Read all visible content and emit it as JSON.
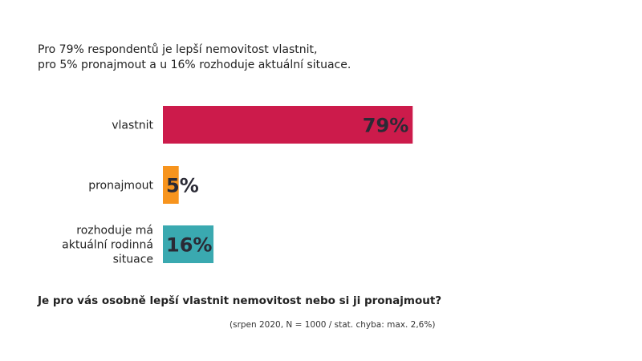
{
  "chart_data": {
    "type": "bar",
    "orientation": "horizontal",
    "title": "Pro 79% respondentů je lepší nemovitost vlastnit,\npro 5% pronajmout a u 16% rozhoduje aktuální situace.",
    "title_lines": [
      "Pro 79% respondentů je lepší nemovitost vlastnit,",
      "pro 5% pronajmout a u 16% rozhoduje aktuální situace."
    ],
    "categories": [
      [
        "vlastnit"
      ],
      [
        "pronajmout"
      ],
      [
        "rozhoduje má",
        "aktuální rodinná",
        "situace"
      ]
    ],
    "values": [
      79,
      5,
      16
    ],
    "value_labels": [
      "79%",
      "5%",
      "16%"
    ],
    "colors": [
      "#cc1b4b",
      "#f7941d",
      "#3aa9b0"
    ],
    "xlim": [
      0,
      100
    ],
    "question": "Je pro vás osobně lepší vlastnit nemovitost nebo si ji pronajmout?",
    "note": "(srpen 2020, N = 1000 / stat. chyba: max. 2,6%)"
  }
}
